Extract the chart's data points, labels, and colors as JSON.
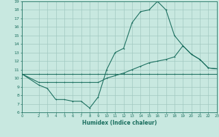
{
  "title": "",
  "xlabel": "Humidex (Indice chaleur)",
  "bg_color": "#c8e8e0",
  "line_color": "#1a6e5e",
  "grid_color": "#a0c8c0",
  "xlim": [
    0,
    23
  ],
  "ylim": [
    6,
    19
  ],
  "xticks": [
    0,
    2,
    3,
    4,
    5,
    6,
    7,
    8,
    9,
    10,
    11,
    12,
    13,
    14,
    15,
    16,
    17,
    18,
    19,
    20,
    21,
    22,
    23
  ],
  "yticks": [
    6,
    7,
    8,
    9,
    10,
    11,
    12,
    13,
    14,
    15,
    16,
    17,
    18,
    19
  ],
  "line1_x": [
    0,
    2,
    3,
    4,
    5,
    6,
    7,
    8,
    9,
    10,
    11,
    12,
    13,
    14,
    15,
    16,
    17,
    18,
    19,
    20,
    21,
    22,
    23
  ],
  "line1_y": [
    10.5,
    10.5,
    10.5,
    10.5,
    10.5,
    10.5,
    10.5,
    10.5,
    10.5,
    10.5,
    10.5,
    10.5,
    10.5,
    10.5,
    10.5,
    10.5,
    10.5,
    10.5,
    10.5,
    10.5,
    10.5,
    10.5,
    10.5
  ],
  "line2_x": [
    0,
    2,
    3,
    4,
    5,
    6,
    7,
    8,
    9,
    10,
    11,
    12,
    13,
    14,
    15,
    16,
    17,
    18,
    19,
    20,
    21,
    22,
    23
  ],
  "line2_y": [
    10.5,
    9.5,
    9.5,
    9.5,
    9.5,
    9.5,
    9.5,
    9.5,
    9.5,
    10.0,
    10.3,
    10.6,
    11.0,
    11.4,
    11.8,
    12.0,
    12.2,
    12.5,
    13.8,
    12.8,
    12.2,
    11.2,
    11.1
  ],
  "line3_x": [
    0,
    2,
    3,
    4,
    5,
    6,
    7,
    8,
    9,
    10,
    11,
    12,
    13,
    14,
    15,
    16,
    17,
    18,
    19,
    20,
    21,
    22,
    23
  ],
  "line3_y": [
    10.5,
    9.2,
    8.8,
    7.5,
    7.5,
    7.3,
    7.3,
    6.5,
    7.8,
    11.0,
    13.0,
    13.5,
    16.5,
    17.8,
    18.0,
    19.0,
    18.0,
    15.0,
    13.8,
    12.8,
    12.2,
    11.2,
    11.1
  ]
}
